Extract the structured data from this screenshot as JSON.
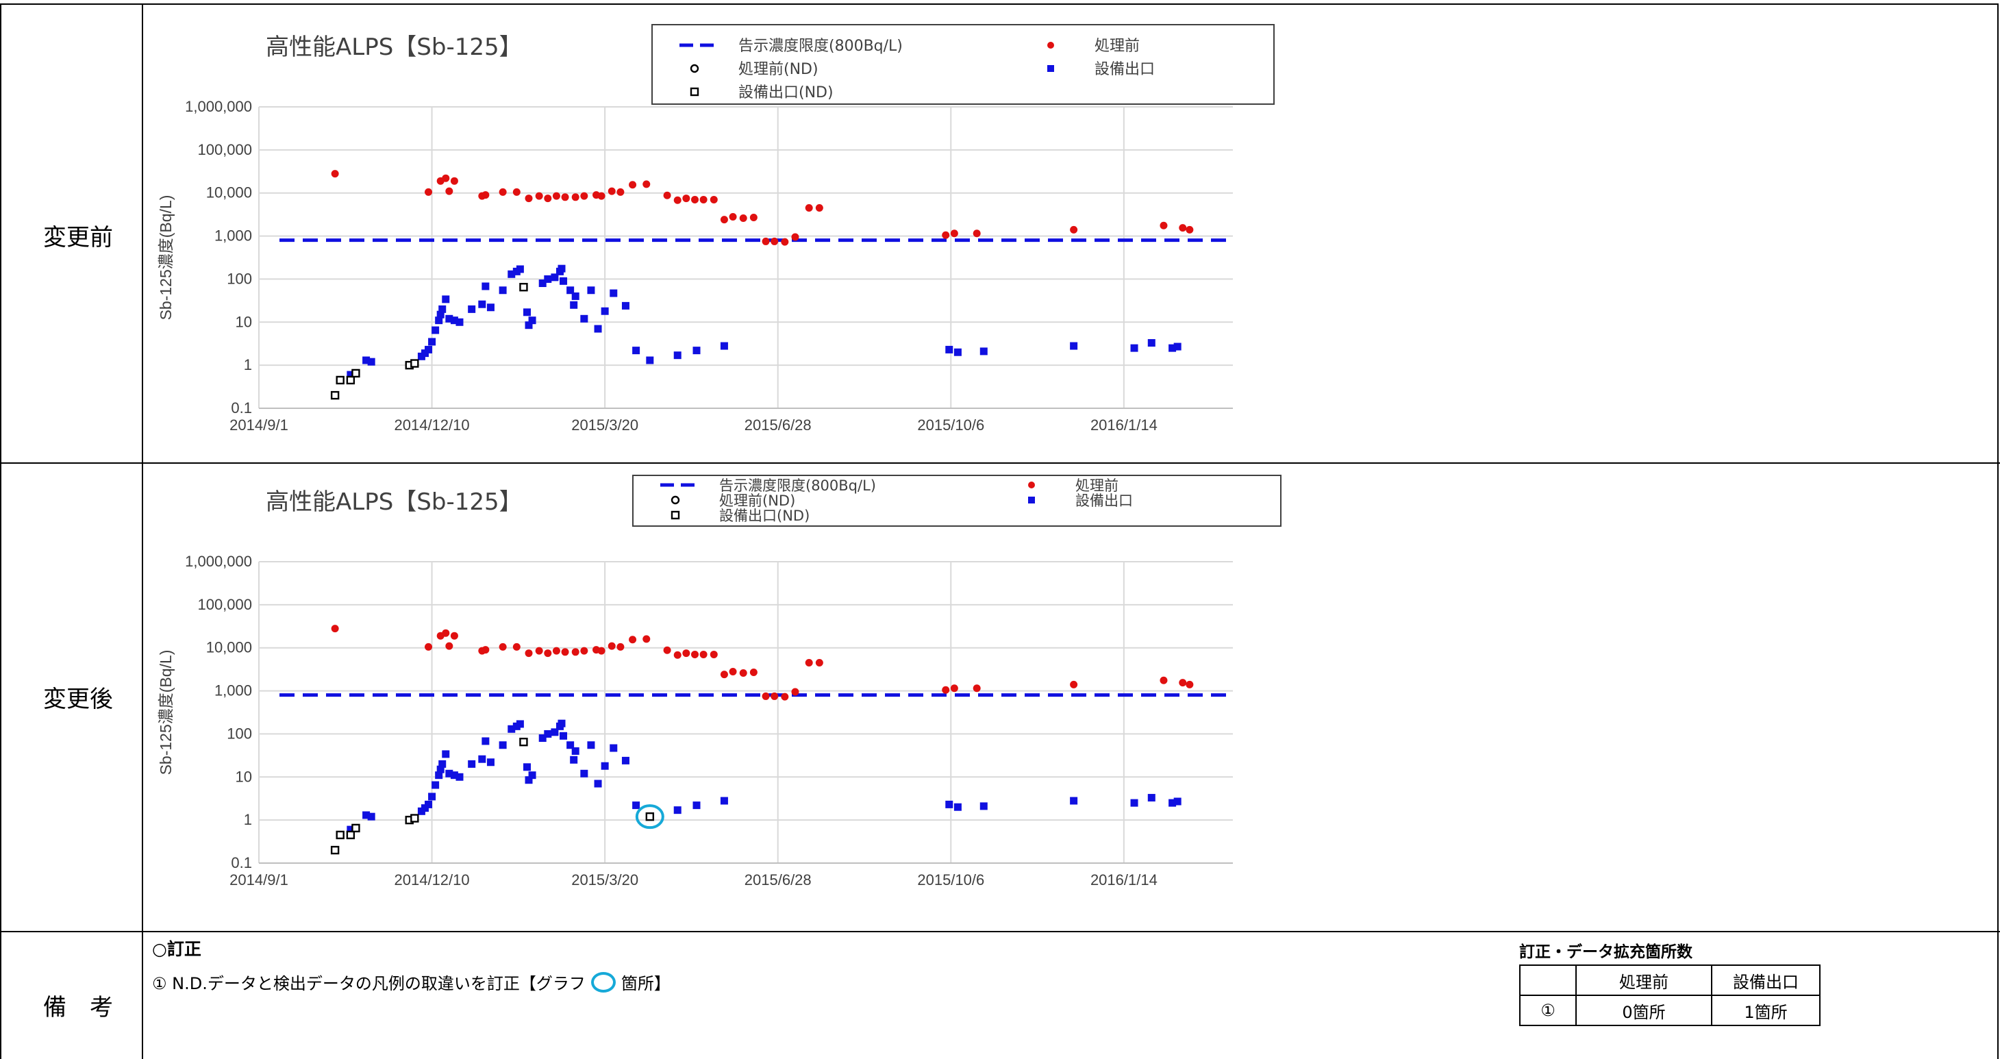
{
  "rows": {
    "before": {
      "label": "変更前"
    },
    "after": {
      "label": "変更後"
    },
    "remarks": {
      "label": "備　考"
    }
  },
  "chart_data": [
    {
      "type": "scatter",
      "title": "高性能ALPS【Sb-125】",
      "xlabel": "",
      "ylabel": "Sb-125濃度(Bq/L)",
      "y_scale": "log",
      "ylim": [
        0.1,
        1000000
      ],
      "yticks": [
        "0.1",
        "1",
        "10",
        "100",
        "1,000",
        "10,000",
        "100,000",
        "1,000,000"
      ],
      "xlim": [
        "2014-09-01",
        "2016-03-17"
      ],
      "xticks": [
        "2014/9/1",
        "2014/12/10",
        "2015/3/20",
        "2015/6/28",
        "2015/10/6",
        "2016/1/14"
      ],
      "grid": true,
      "legend_position": "top",
      "legend": [
        "告示濃度限度(800Bq/L)",
        "処理前",
        "処理前(ND)",
        "設備出口",
        "設備出口(ND)"
      ],
      "reference_line": {
        "name": "告示濃度限度(800Bq/L)",
        "y": 800,
        "color": "#1010e0"
      },
      "series": [
        {
          "name": "処理前",
          "marker": "dot",
          "color": "#e01010",
          "points": [
            [
              "2014-10-15",
              28000
            ],
            [
              "2014-12-08",
              10500
            ],
            [
              "2014-12-15",
              19000
            ],
            [
              "2014-12-18",
              22000
            ],
            [
              "2014-12-20",
              11000
            ],
            [
              "2014-12-23",
              19000
            ],
            [
              "2015-01-08",
              8500
            ],
            [
              "2015-01-10",
              9000
            ],
            [
              "2015-01-20",
              10500
            ],
            [
              "2015-01-28",
              10500
            ],
            [
              "2015-02-04",
              7500
            ],
            [
              "2015-02-10",
              8500
            ],
            [
              "2015-02-15",
              7500
            ],
            [
              "2015-02-20",
              8500
            ],
            [
              "2015-02-25",
              8000
            ],
            [
              "2015-03-03",
              8000
            ],
            [
              "2015-03-08",
              8500
            ],
            [
              "2015-03-15",
              9000
            ],
            [
              "2015-03-18",
              8500
            ],
            [
              "2015-03-24",
              11000
            ],
            [
              "2015-03-29",
              10500
            ],
            [
              "2015-04-05",
              15500
            ],
            [
              "2015-04-13",
              16000
            ],
            [
              "2015-04-25",
              8800
            ],
            [
              "2015-05-01",
              6800
            ],
            [
              "2015-05-06",
              7500
            ],
            [
              "2015-05-11",
              7000
            ],
            [
              "2015-05-16",
              7000
            ],
            [
              "2015-05-22",
              7000
            ],
            [
              "2015-05-28",
              2400
            ],
            [
              "2015-06-02",
              2800
            ],
            [
              "2015-06-08",
              2600
            ],
            [
              "2015-06-14",
              2700
            ],
            [
              "2015-06-21",
              750
            ],
            [
              "2015-06-26",
              750
            ],
            [
              "2015-07-02",
              730
            ],
            [
              "2015-07-08",
              950
            ],
            [
              "2015-07-16",
              4500
            ],
            [
              "2015-07-22",
              4500
            ],
            [
              "2015-10-03",
              1050
            ],
            [
              "2015-10-08",
              1150
            ],
            [
              "2015-10-21",
              1150
            ],
            [
              "2015-12-16",
              1400
            ],
            [
              "2016-02-06",
              1750
            ],
            [
              "2016-02-17",
              1550
            ],
            [
              "2016-02-21",
              1400
            ]
          ]
        },
        {
          "name": "設備出口",
          "marker": "square",
          "color": "#1010e0",
          "points": [
            [
              "2014-10-24",
              0.6
            ],
            [
              "2014-11-02",
              1.3
            ],
            [
              "2014-11-05",
              1.2
            ],
            [
              "2014-12-04",
              1.6
            ],
            [
              "2014-12-06",
              1.9
            ],
            [
              "2014-12-08",
              2.3
            ],
            [
              "2014-12-10",
              3.5
            ],
            [
              "2014-12-12",
              6.5
            ],
            [
              "2014-12-14",
              11
            ],
            [
              "2014-12-15",
              15
            ],
            [
              "2014-12-16",
              20
            ],
            [
              "2014-12-18",
              34
            ],
            [
              "2014-12-20",
              12
            ],
            [
              "2014-12-23",
              11
            ],
            [
              "2014-12-26",
              10
            ],
            [
              "2015-01-02",
              20
            ],
            [
              "2015-01-08",
              26
            ],
            [
              "2015-01-10",
              68
            ],
            [
              "2015-01-13",
              22
            ],
            [
              "2015-01-20",
              55
            ],
            [
              "2015-01-25",
              130
            ],
            [
              "2015-01-28",
              150
            ],
            [
              "2015-01-30",
              170
            ],
            [
              "2015-02-03",
              17
            ],
            [
              "2015-02-04",
              8.5
            ],
            [
              "2015-02-06",
              11
            ],
            [
              "2015-02-12",
              80
            ],
            [
              "2015-02-15",
              100
            ],
            [
              "2015-02-19",
              110
            ],
            [
              "2015-02-22",
              150
            ],
            [
              "2015-02-23",
              175
            ],
            [
              "2015-02-24",
              90
            ],
            [
              "2015-02-28",
              55
            ],
            [
              "2015-03-02",
              25
            ],
            [
              "2015-03-03",
              40
            ],
            [
              "2015-03-08",
              12
            ],
            [
              "2015-03-12",
              55
            ],
            [
              "2015-03-16",
              7
            ],
            [
              "2015-03-20",
              18
            ],
            [
              "2015-03-25",
              47
            ],
            [
              "2015-04-01",
              24
            ],
            [
              "2015-04-07",
              2.2
            ],
            [
              "2015-04-15",
              1.3
            ],
            [
              "2015-05-01",
              1.7
            ],
            [
              "2015-05-12",
              2.2
            ],
            [
              "2015-05-28",
              2.8
            ],
            [
              "2015-10-05",
              2.3
            ],
            [
              "2015-10-10",
              2
            ],
            [
              "2015-10-25",
              2.1
            ],
            [
              "2015-12-16",
              2.8
            ],
            [
              "2016-01-20",
              2.5
            ],
            [
              "2016-01-30",
              3.3
            ],
            [
              "2016-02-11",
              2.5
            ],
            [
              "2016-02-14",
              2.7
            ]
          ]
        },
        {
          "name": "設備出口(ND)",
          "marker": "open-square",
          "color": "#000000",
          "points": [
            [
              "2014-10-15",
              0.2
            ],
            [
              "2014-10-18",
              0.45
            ],
            [
              "2014-10-24",
              0.45
            ],
            [
              "2014-10-27",
              0.65
            ],
            [
              "2014-11-27",
              1
            ],
            [
              "2014-11-30",
              1.1
            ],
            [
              "2015-02-01",
              65
            ]
          ]
        }
      ]
    },
    {
      "type": "scatter",
      "title": "高性能ALPS【Sb-125】",
      "xlabel": "",
      "ylabel": "Sb-125濃度(Bq/L)",
      "y_scale": "log",
      "ylim": [
        0.1,
        1000000
      ],
      "yticks": [
        "0.1",
        "1",
        "10",
        "100",
        "1,000",
        "10,000",
        "100,000",
        "1,000,000"
      ],
      "xlim": [
        "2014-09-01",
        "2016-03-17"
      ],
      "xticks": [
        "2014/9/1",
        "2014/12/10",
        "2015/3/20",
        "2015/6/28",
        "2015/10/6",
        "2016/1/14"
      ],
      "grid": true,
      "legend_position": "top",
      "legend": [
        "告示濃度限度(800Bq/L)",
        "処理前",
        "処理前(ND)",
        "設備出口",
        "設備出口(ND)"
      ],
      "reference_line": {
        "name": "告示濃度限度(800Bq/L)",
        "y": 800,
        "color": "#1010e0"
      },
      "series": [
        {
          "name": "処理前",
          "marker": "dot",
          "color": "#e01010",
          "points": [
            [
              "2014-10-15",
              28000
            ],
            [
              "2014-12-08",
              10500
            ],
            [
              "2014-12-15",
              19000
            ],
            [
              "2014-12-18",
              22000
            ],
            [
              "2014-12-20",
              11000
            ],
            [
              "2014-12-23",
              19000
            ],
            [
              "2015-01-08",
              8500
            ],
            [
              "2015-01-10",
              9000
            ],
            [
              "2015-01-20",
              10500
            ],
            [
              "2015-01-28",
              10500
            ],
            [
              "2015-02-04",
              7500
            ],
            [
              "2015-02-10",
              8500
            ],
            [
              "2015-02-15",
              7500
            ],
            [
              "2015-02-20",
              8500
            ],
            [
              "2015-02-25",
              8000
            ],
            [
              "2015-03-03",
              8000
            ],
            [
              "2015-03-08",
              8500
            ],
            [
              "2015-03-15",
              9000
            ],
            [
              "2015-03-18",
              8500
            ],
            [
              "2015-03-24",
              11000
            ],
            [
              "2015-03-29",
              10500
            ],
            [
              "2015-04-05",
              15500
            ],
            [
              "2015-04-13",
              16000
            ],
            [
              "2015-04-25",
              8800
            ],
            [
              "2015-05-01",
              6800
            ],
            [
              "2015-05-06",
              7500
            ],
            [
              "2015-05-11",
              7000
            ],
            [
              "2015-05-16",
              7000
            ],
            [
              "2015-05-22",
              7000
            ],
            [
              "2015-05-28",
              2400
            ],
            [
              "2015-06-02",
              2800
            ],
            [
              "2015-06-08",
              2600
            ],
            [
              "2015-06-14",
              2700
            ],
            [
              "2015-06-21",
              750
            ],
            [
              "2015-06-26",
              750
            ],
            [
              "2015-07-02",
              730
            ],
            [
              "2015-07-08",
              950
            ],
            [
              "2015-07-16",
              4500
            ],
            [
              "2015-07-22",
              4500
            ],
            [
              "2015-10-03",
              1050
            ],
            [
              "2015-10-08",
              1150
            ],
            [
              "2015-10-21",
              1150
            ],
            [
              "2015-12-16",
              1400
            ],
            [
              "2016-02-06",
              1750
            ],
            [
              "2016-02-17",
              1550
            ],
            [
              "2016-02-21",
              1400
            ]
          ]
        },
        {
          "name": "設備出口",
          "marker": "square",
          "color": "#1010e0",
          "points": [
            [
              "2014-10-24",
              0.6
            ],
            [
              "2014-11-02",
              1.3
            ],
            [
              "2014-11-05",
              1.2
            ],
            [
              "2014-12-04",
              1.6
            ],
            [
              "2014-12-06",
              1.9
            ],
            [
              "2014-12-08",
              2.3
            ],
            [
              "2014-12-10",
              3.5
            ],
            [
              "2014-12-12",
              6.5
            ],
            [
              "2014-12-14",
              11
            ],
            [
              "2014-12-15",
              15
            ],
            [
              "2014-12-16",
              20
            ],
            [
              "2014-12-18",
              34
            ],
            [
              "2014-12-20",
              12
            ],
            [
              "2014-12-23",
              11
            ],
            [
              "2014-12-26",
              10
            ],
            [
              "2015-01-02",
              20
            ],
            [
              "2015-01-08",
              26
            ],
            [
              "2015-01-10",
              68
            ],
            [
              "2015-01-13",
              22
            ],
            [
              "2015-01-20",
              55
            ],
            [
              "2015-01-25",
              130
            ],
            [
              "2015-01-28",
              150
            ],
            [
              "2015-01-30",
              170
            ],
            [
              "2015-02-03",
              17
            ],
            [
              "2015-02-04",
              8.5
            ],
            [
              "2015-02-06",
              11
            ],
            [
              "2015-02-12",
              80
            ],
            [
              "2015-02-15",
              100
            ],
            [
              "2015-02-19",
              110
            ],
            [
              "2015-02-22",
              150
            ],
            [
              "2015-02-23",
              175
            ],
            [
              "2015-02-24",
              90
            ],
            [
              "2015-02-28",
              55
            ],
            [
              "2015-03-02",
              25
            ],
            [
              "2015-03-03",
              40
            ],
            [
              "2015-03-08",
              12
            ],
            [
              "2015-03-12",
              55
            ],
            [
              "2015-03-16",
              7
            ],
            [
              "2015-03-20",
              18
            ],
            [
              "2015-03-25",
              47
            ],
            [
              "2015-04-01",
              24
            ],
            [
              "2015-04-07",
              2.2
            ],
            [
              "2015-05-01",
              1.7
            ],
            [
              "2015-05-12",
              2.2
            ],
            [
              "2015-05-28",
              2.8
            ],
            [
              "2015-10-05",
              2.3
            ],
            [
              "2015-10-10",
              2
            ],
            [
              "2015-10-25",
              2.1
            ],
            [
              "2015-12-16",
              2.8
            ],
            [
              "2016-01-20",
              2.5
            ],
            [
              "2016-01-30",
              3.3
            ],
            [
              "2016-02-11",
              2.5
            ],
            [
              "2016-02-14",
              2.7
            ]
          ]
        },
        {
          "name": "設備出口(ND)",
          "marker": "open-square",
          "color": "#000000",
          "points": [
            [
              "2014-10-15",
              0.2
            ],
            [
              "2014-10-18",
              0.45
            ],
            [
              "2014-10-24",
              0.45
            ],
            [
              "2014-10-27",
              0.65
            ],
            [
              "2014-11-27",
              1
            ],
            [
              "2014-11-30",
              1.1
            ],
            [
              "2015-02-01",
              65
            ],
            [
              "2015-04-15",
              1.2
            ]
          ]
        }
      ],
      "highlight": {
        "x": "2015-04-15",
        "y": 1.2,
        "color": "#16a9d8"
      }
    }
  ],
  "remarks": {
    "heading": "○訂正",
    "item_prefix": "① N.D.データと検出データの凡例の取違いを訂正【グラフ",
    "item_suffix": "箇所】"
  },
  "summary": {
    "caption": "訂正・データ拡充箇所数",
    "headers": [
      "",
      "処理前",
      "設備出口"
    ],
    "row": [
      "①",
      "0箇所",
      "1箇所"
    ]
  }
}
